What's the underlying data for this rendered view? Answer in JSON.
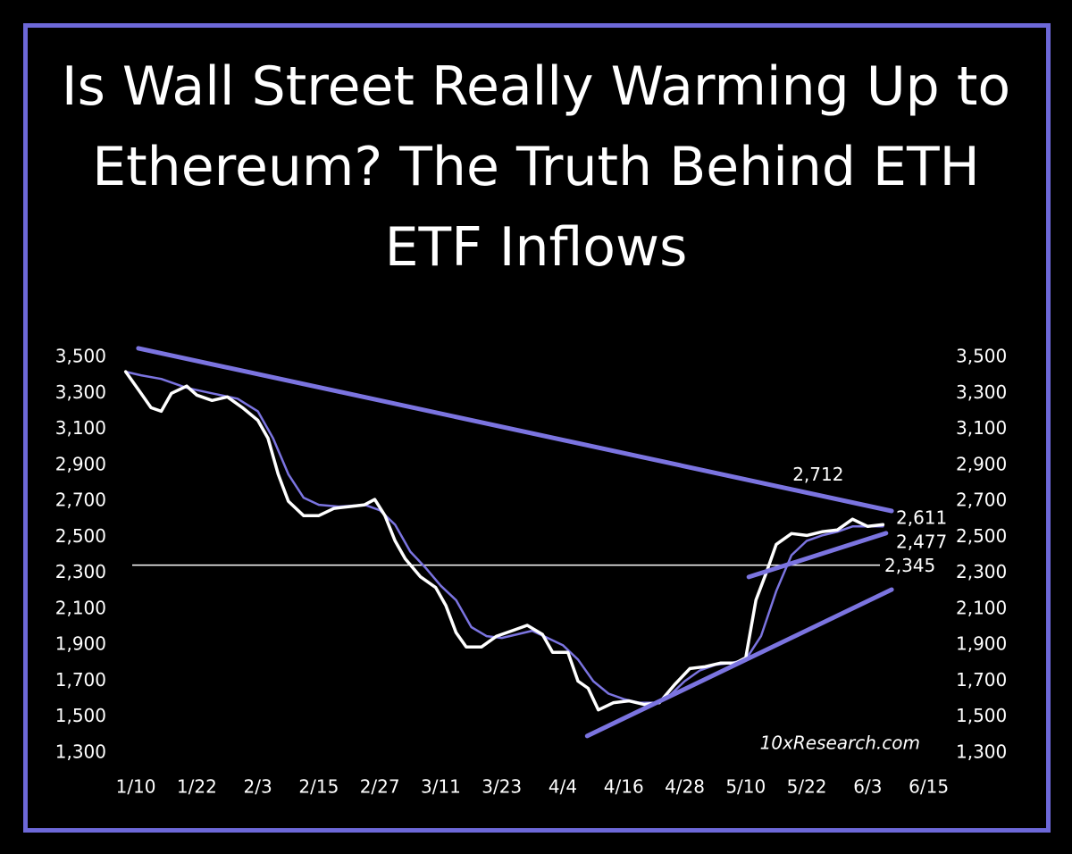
{
  "chart_data": {
    "type": "line",
    "title": "Is Wall Street Really Warming Up to Ethereum? The Truth Behind ETH ETF Inflows",
    "watermark": "10xResearch.com",
    "xlim": [
      7,
      168
    ],
    "xticks": [
      {
        "value": 10,
        "label": "1/10"
      },
      {
        "value": 22,
        "label": "1/22"
      },
      {
        "value": 34,
        "label": "2/3"
      },
      {
        "value": 46,
        "label": "2/15"
      },
      {
        "value": 58,
        "label": "2/27"
      },
      {
        "value": 70,
        "label": "3/11"
      },
      {
        "value": 82,
        "label": "3/23"
      },
      {
        "value": 94,
        "label": "4/4"
      },
      {
        "value": 106,
        "label": "4/16"
      },
      {
        "value": 118,
        "label": "4/28"
      },
      {
        "value": 130,
        "label": "5/10"
      },
      {
        "value": 142,
        "label": "5/22"
      },
      {
        "value": 154,
        "label": "6/3"
      },
      {
        "value": 166,
        "label": "6/15"
      }
    ],
    "ylim": [
      1300,
      3500
    ],
    "yticks": [
      {
        "value": 1300,
        "label": "1,300"
      },
      {
        "value": 1500,
        "label": "1,500"
      },
      {
        "value": 1700,
        "label": "1,700"
      },
      {
        "value": 1900,
        "label": "1,900"
      },
      {
        "value": 2100,
        "label": "2,100"
      },
      {
        "value": 2300,
        "label": "2,300"
      },
      {
        "value": 2500,
        "label": "2,500"
      },
      {
        "value": 2700,
        "label": "2,700"
      },
      {
        "value": 2900,
        "label": "2,900"
      },
      {
        "value": 3100,
        "label": "3,100"
      },
      {
        "value": 3300,
        "label": "3,300"
      },
      {
        "value": 3500,
        "label": "3,500"
      }
    ],
    "y2lim": [
      1300,
      3500
    ],
    "y2ticks": [
      {
        "value": 1300,
        "label": "1,300"
      },
      {
        "value": 1500,
        "label": "1,500"
      },
      {
        "value": 1700,
        "label": "1,700"
      },
      {
        "value": 1900,
        "label": "1,900"
      },
      {
        "value": 2100,
        "label": "2,100"
      },
      {
        "value": 2300,
        "label": "2,300"
      },
      {
        "value": 2500,
        "label": "2,500"
      },
      {
        "value": 2700,
        "label": "2,700"
      },
      {
        "value": 2900,
        "label": "2,900"
      },
      {
        "value": 3100,
        "label": "3,100"
      },
      {
        "value": 3300,
        "label": "3,300"
      },
      {
        "value": 3500,
        "label": "3,500"
      }
    ],
    "series": [
      {
        "color": "#7b74e0",
        "x": [
          8,
          11,
          15,
          20,
          25,
          30,
          34,
          37,
          40,
          43,
          46,
          50,
          55,
          58,
          61,
          64,
          67,
          70,
          73,
          76,
          79,
          82,
          85,
          88,
          91,
          94,
          97,
          100,
          103,
          106,
          109,
          112,
          115,
          118,
          121,
          124,
          127,
          130,
          133,
          136,
          139,
          142,
          145,
          148,
          151,
          154,
          157
        ],
        "values": [
          3420,
          3400,
          3380,
          3330,
          3300,
          3270,
          3200,
          3050,
          2850,
          2720,
          2680,
          2670,
          2680,
          2650,
          2570,
          2420,
          2330,
          2230,
          2150,
          2000,
          1950,
          1940,
          1960,
          1980,
          1940,
          1900,
          1820,
          1700,
          1630,
          1600,
          1580,
          1580,
          1620,
          1700,
          1760,
          1790,
          1800,
          1820,
          1950,
          2200,
          2400,
          2480,
          2510,
          2530,
          2560,
          2560,
          2560
        ]
      },
      {
        "color": "#ffffff",
        "x": [
          8,
          11,
          13,
          15,
          17,
          20,
          22,
          25,
          28,
          31,
          34,
          36,
          38,
          40,
          43,
          46,
          49,
          52,
          55,
          57,
          59,
          61,
          63,
          66,
          69,
          71,
          73,
          75,
          78,
          81,
          84,
          87,
          90,
          92,
          95,
          97,
          99,
          101,
          104,
          107,
          110,
          113,
          116,
          119,
          122,
          125,
          128,
          130,
          132,
          134,
          136,
          139,
          142,
          145,
          148,
          151,
          154,
          157
        ],
        "values": [
          3420,
          3300,
          3220,
          3200,
          3300,
          3340,
          3290,
          3260,
          3280,
          3220,
          3150,
          3050,
          2850,
          2700,
          2620,
          2620,
          2660,
          2670,
          2680,
          2710,
          2620,
          2480,
          2380,
          2280,
          2220,
          2120,
          1970,
          1890,
          1890,
          1950,
          1980,
          2010,
          1960,
          1860,
          1860,
          1700,
          1660,
          1540,
          1580,
          1590,
          1570,
          1580,
          1680,
          1770,
          1780,
          1800,
          1800,
          1830,
          2150,
          2300,
          2460,
          2520,
          2510,
          2530,
          2540,
          2600,
          2560,
          2570
        ]
      }
    ],
    "trendlines": [
      {
        "color": "#7b74e0",
        "x": [
          10.5,
          158.7
        ],
        "values": [
          3550,
          2646
        ]
      },
      {
        "color": "#7b74e0",
        "x": [
          98.8,
          158.7
        ],
        "values": [
          1395,
          2209
        ]
      },
      {
        "color": "#7b74e0",
        "x": [
          130.6,
          157.6
        ],
        "values": [
          2279,
          2522
        ]
      }
    ],
    "hlines": [
      2345
    ],
    "annotations": [
      {
        "text": "2,712",
        "value": 2712,
        "x": 146
      },
      {
        "text": "2,611",
        "value": 2611
      },
      {
        "text": "2,477",
        "value": 2477
      },
      {
        "text": "2,345",
        "value": 2345
      }
    ]
  }
}
